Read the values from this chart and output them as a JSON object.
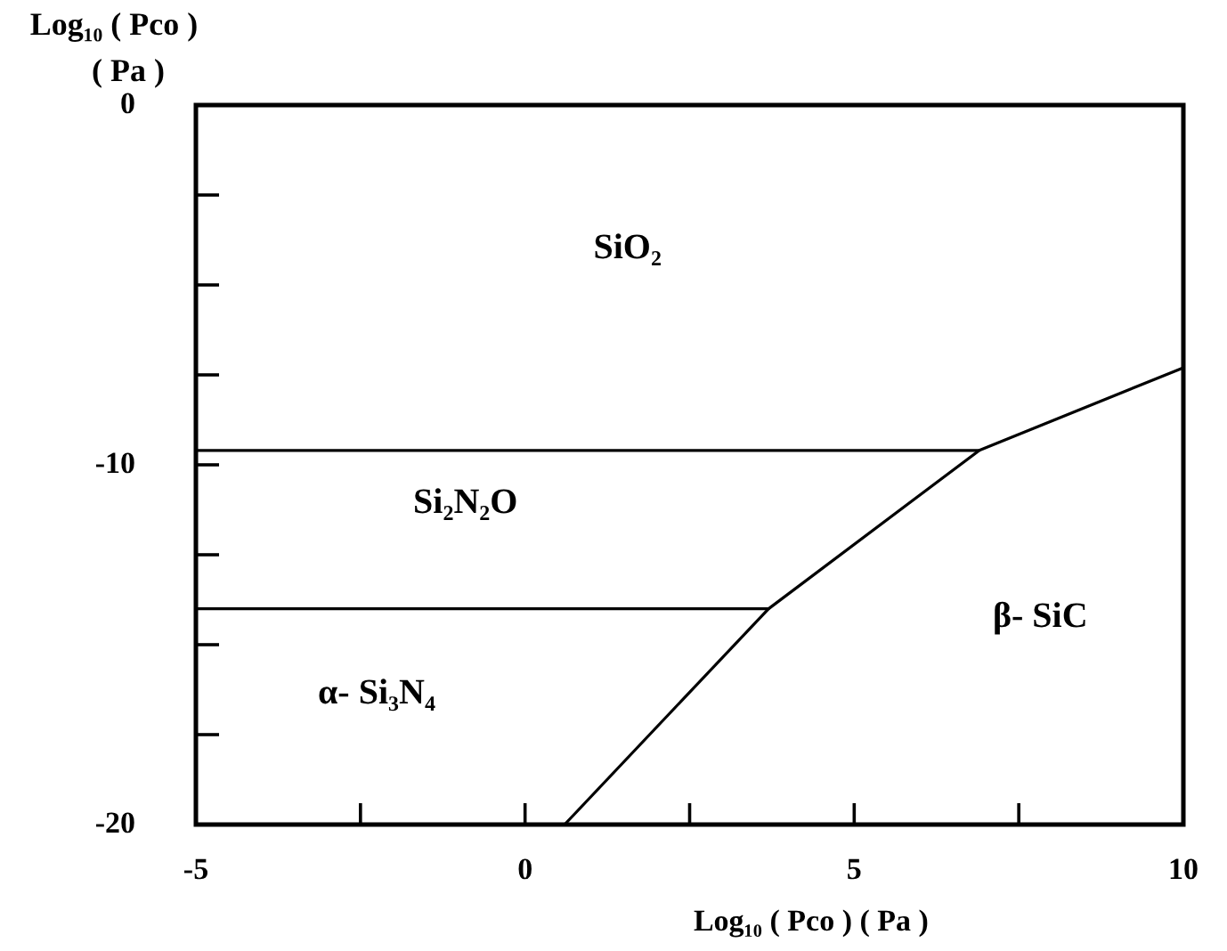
{
  "chart_data": {
    "type": "line",
    "xlabel": "Log₁₀ ( Pco ) ( Pa )",
    "ylabel": "Log₁₀ ( Pco )\n( Pa )",
    "xlim": [
      -5,
      10
    ],
    "ylim": [
      -20,
      0
    ],
    "xticks": [
      -5,
      {
        "value": -2.5,
        "label": null
      },
      0,
      {
        "value": 2.5,
        "label": null
      },
      5,
      {
        "value": 7.5,
        "label": null
      },
      10
    ],
    "yticks": [
      -20,
      {
        "value": -17.5,
        "label": null
      },
      {
        "value": -15,
        "label": null
      },
      {
        "value": -12.5,
        "label": null
      },
      -10,
      {
        "value": -7.5,
        "label": null
      },
      {
        "value": -5,
        "label": null
      },
      {
        "value": -2.5,
        "label": null
      },
      0
    ],
    "series": [
      {
        "color": "#000000",
        "x": [
          -5,
          6.9
        ],
        "values": [
          -9.6,
          -9.6
        ]
      },
      {
        "color": "#000000",
        "x": [
          -5,
          3.7
        ],
        "values": [
          -14.0,
          -14.0
        ]
      },
      {
        "color": "#000000",
        "x": [
          0.6,
          3.7,
          6.9,
          10
        ],
        "values": [
          -20,
          -14.0,
          -9.6,
          -7.3
        ]
      }
    ],
    "annotations": [
      "SiO₂",
      "Si₂N₂O",
      "α- Si₃N₄",
      "β- SiC"
    ]
  }
}
